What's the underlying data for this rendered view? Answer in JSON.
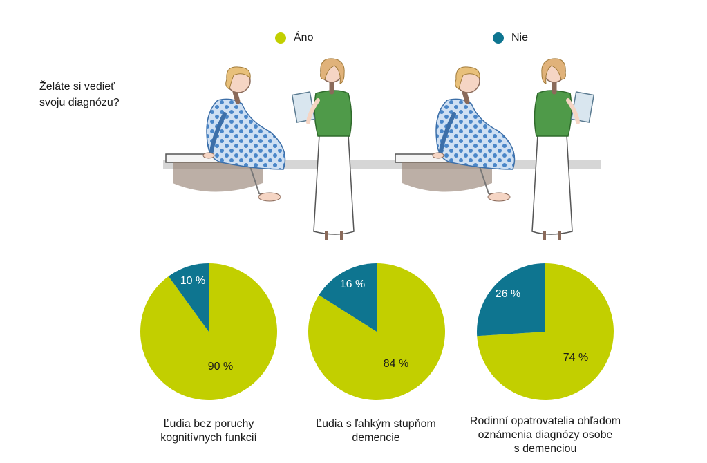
{
  "question": {
    "line1": "Želáte si vedieť",
    "line2": "svoju diagnózu?"
  },
  "legend": [
    {
      "label": "Áno",
      "color": "#c2cf00"
    },
    {
      "label": "Nie",
      "color": "#0e7590"
    }
  ],
  "chart_data": [
    {
      "type": "pie",
      "categories": [
        "Áno",
        "Nie"
      ],
      "values": [
        90,
        10
      ],
      "labels": [
        "90 %",
        "10 %"
      ],
      "caption": [
        "Ľudia bez poruchy",
        "kognitívnych funkcií"
      ]
    },
    {
      "type": "pie",
      "categories": [
        "Áno",
        "Nie"
      ],
      "values": [
        84,
        16
      ],
      "labels": [
        "84 %",
        "16 %"
      ],
      "caption": [
        "Ľudia s ľahkým stupňom",
        "demencie"
      ]
    },
    {
      "type": "pie",
      "categories": [
        "Áno",
        "Nie"
      ],
      "values": [
        74,
        26
      ],
      "labels": [
        "74 %",
        "26 %"
      ],
      "caption": [
        "Rodinní opatrovatelia ohľadom",
        "oznámenia diagnózy osobe",
        "s demenciou"
      ]
    }
  ]
}
